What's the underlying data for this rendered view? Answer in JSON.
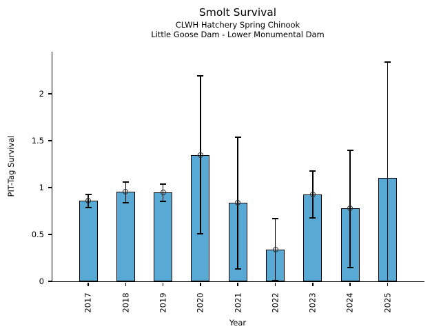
{
  "figure": {
    "title": "Smolt Survival",
    "subtitle1": "CLWH Hatchery Spring Chinook",
    "subtitle2": "Little Goose Dam - Lower Monumental Dam"
  },
  "chart_data": {
    "type": "bar",
    "title": "Smolt Survival",
    "subtitle": [
      "CLWH Hatchery Spring Chinook",
      "Little Goose Dam - Lower Monumental Dam"
    ],
    "xlabel": "Year",
    "ylabel": "PIT-Tag Survival",
    "categories": [
      "2017",
      "2018",
      "2019",
      "2020",
      "2021",
      "2022",
      "2023",
      "2024",
      "2025"
    ],
    "values": [
      0.86,
      0.96,
      0.95,
      1.35,
      0.84,
      0.34,
      0.93,
      0.78,
      1.1
    ],
    "error_low": [
      0.79,
      0.84,
      0.85,
      0.51,
      0.13,
      0.01,
      0.68,
      0.15,
      0.0
    ],
    "error_high": [
      0.93,
      1.06,
      1.04,
      2.19,
      1.54,
      0.67,
      1.18,
      1.4,
      2.34
    ],
    "point_marker": [
      true,
      true,
      true,
      true,
      true,
      true,
      true,
      true,
      false
    ],
    "yticks": [
      0,
      0.5,
      1,
      1.5,
      2
    ],
    "ytick_labels": [
      "0",
      "0.5",
      "1",
      "1.5",
      "2"
    ],
    "ylim": [
      0,
      2.45
    ],
    "grid": false,
    "legend": false,
    "bar_color": "#58a9d4",
    "bar_edge_color": "#000000",
    "error_color": "#000000",
    "marker_edge_color": "#2f2f2f",
    "axis_color": "#000000"
  }
}
